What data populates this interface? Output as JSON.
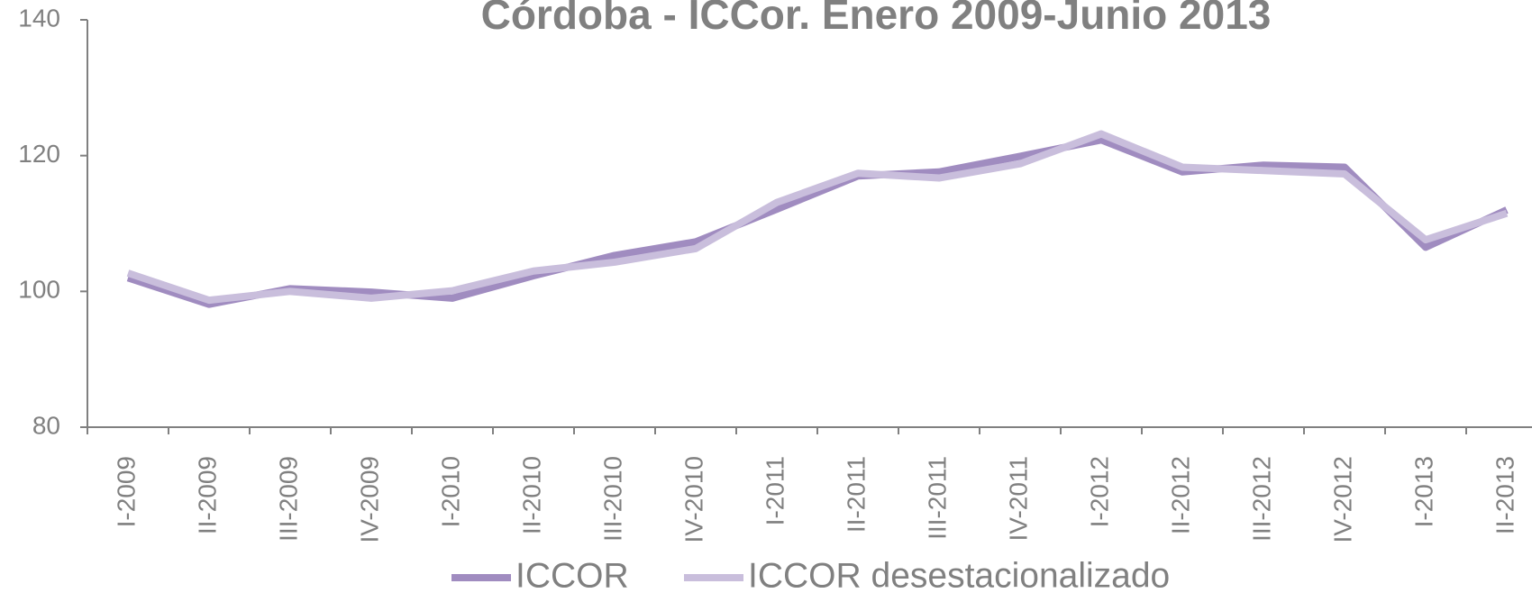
{
  "chart_data": {
    "type": "line",
    "title": "Córdoba - ICCor. Enero 2009-Junio 2013",
    "categories": [
      "I-2009",
      "II-2009",
      "III-2009",
      "IV-2009",
      "I-2010",
      "II-2010",
      "III-2010",
      "IV-2010",
      "I-2011",
      "II-2011",
      "III-2011",
      "IV-2011",
      "I-2012",
      "II-2012",
      "III-2012",
      "IV-2012",
      "I-2013",
      "II-2013"
    ],
    "series": [
      {
        "name": "ICCOR",
        "color": "#a08cc0",
        "values": [
          102,
          98.1,
          100.4,
          99.9,
          99,
          102.3,
          105.3,
          107.3,
          112.1,
          117,
          117.6,
          119.9,
          122.3,
          117.6,
          118.6,
          118.3,
          106.5,
          112
        ]
      },
      {
        "name": "ICCOR desestacionalizado",
        "color": "#c9bedc",
        "values": [
          102.7,
          98.7,
          100,
          99,
          100.1,
          103,
          104.3,
          106.3,
          113.1,
          117.4,
          116.7,
          118.8,
          123.2,
          118.3,
          117.8,
          117.3,
          107.6,
          111.5
        ]
      }
    ],
    "ylim": [
      80,
      140
    ],
    "yticks": [
      80,
      100,
      120,
      140
    ],
    "grid": false,
    "legend": "bottom"
  }
}
